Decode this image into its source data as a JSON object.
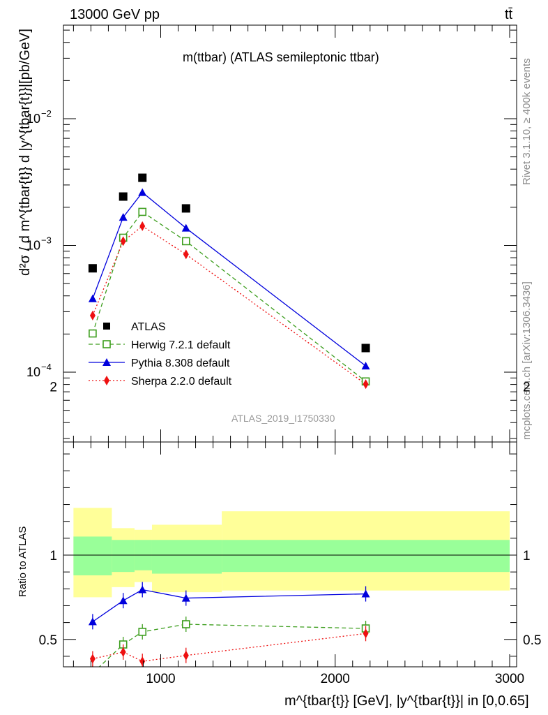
{
  "header": {
    "energy": "13000 GeV pp",
    "process": "tt̄"
  },
  "side": {
    "rivet": "Rivet 3.1.10, ≥ 400k events",
    "source": "mcplots.cern.ch [arXiv:1306.3436]"
  },
  "chart_data": [
    {
      "type": "scatter",
      "panel": "main",
      "title": "m(ttbar) (ATLAS semileptonic ttbar)",
      "analysis_tag": "ATLAS_2019_I1750330",
      "ylabel": "d²σ / d m^{tbar{t}} d |y^{tbar{t}}|[pb/GeV]",
      "xlabel": "m^{tbar{t}} [GeV], |y^{tbar{t}}| in [0,0.65]",
      "xlim": [
        450,
        3050
      ],
      "ylim": [
        2.5e-05,
        0.05
      ],
      "yscale": "log",
      "xticks": [
        "1000",
        "2000",
        "3000"
      ],
      "yticks": [
        "10^-4",
        "10^-3",
        "10^-2"
      ],
      "x": [
        610,
        785,
        895,
        1145,
        2175
      ],
      "legend_position": "left",
      "series": [
        {
          "name": "ATLAS",
          "color": "#000000",
          "marker": "square",
          "values": [
            0.00066,
            0.00243,
            0.00342,
            0.00196,
            0.000155
          ]
        },
        {
          "name": "Herwig 7.2.1 default",
          "color": "#3d9e1e",
          "marker": "open-square",
          "dash": "dashed",
          "values": [
            0.000202,
            0.00115,
            0.00184,
            0.00108,
            8.45e-05
          ]
        },
        {
          "name": "Pythia 8.308 default",
          "color": "#0000dd",
          "marker": "triangle",
          "dash": "solid",
          "values": [
            0.00038,
            0.00167,
            0.00262,
            0.00137,
            0.000112
          ]
        },
        {
          "name": "Sherpa 2.2.0 default",
          "color": "#ee1010",
          "marker": "diamond",
          "dash": "dotted",
          "values": [
            0.00028,
            0.00108,
            0.00142,
            0.00085,
            8.05e-05
          ]
        }
      ]
    },
    {
      "type": "scatter",
      "panel": "ratio",
      "ylabel": "Ratio to ATLAS",
      "ylim": [
        0.35,
        2.3
      ],
      "yticks": [
        "0.5",
        "1",
        "2"
      ],
      "bin_edges": [
        500,
        720,
        850,
        950,
        1350,
        3000
      ],
      "band_1sigma": {
        "lo": [
          0.88,
          0.9,
          0.91,
          0.89,
          0.9
        ],
        "hi": [
          1.11,
          1.09,
          1.09,
          1.09,
          1.09
        ],
        "color": "#99ff99"
      },
      "band_2sigma": {
        "lo": [
          0.75,
          0.81,
          0.84,
          0.78,
          0.79
        ],
        "hi": [
          1.28,
          1.16,
          1.15,
          1.18,
          1.26
        ],
        "color": "#ffff99"
      },
      "x": [
        610,
        785,
        895,
        1145,
        2175
      ],
      "series": [
        {
          "name": "Herwig 7.2.1 default",
          "color": "#3d9e1e",
          "values": [
            0.3,
            0.47,
            0.545,
            0.59,
            0.565
          ]
        },
        {
          "name": "Pythia 8.308 default",
          "color": "#0000dd",
          "values": [
            0.605,
            0.73,
            0.795,
            0.745,
            0.77
          ]
        },
        {
          "name": "Sherpa 2.2.0 default",
          "color": "#ee1010",
          "values": [
            0.385,
            0.425,
            0.37,
            0.405,
            0.535
          ]
        }
      ]
    }
  ]
}
